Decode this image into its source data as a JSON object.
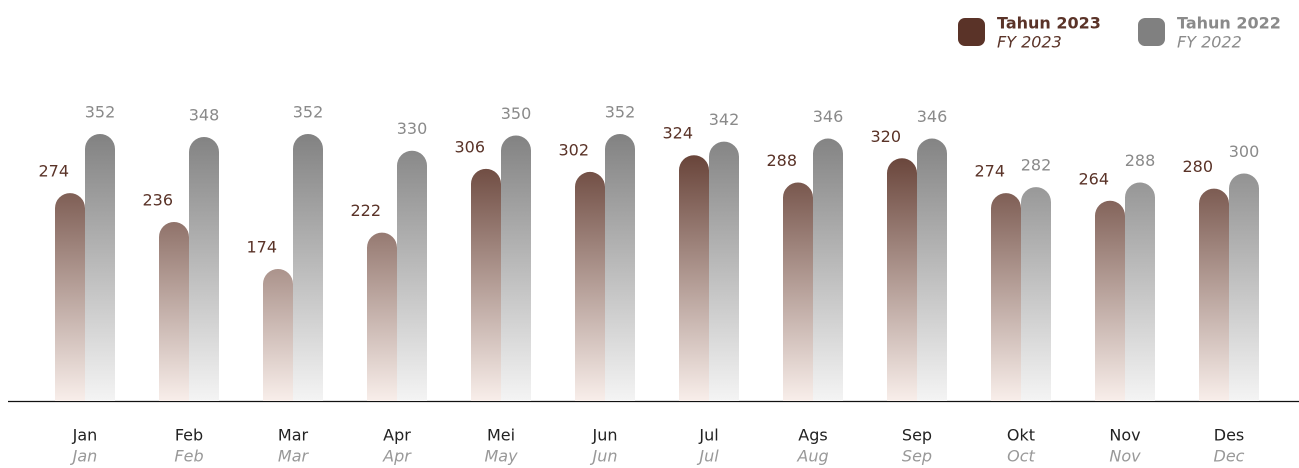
{
  "chart_data": {
    "type": "bar",
    "categories": [
      "Jan",
      "Feb",
      "Mar",
      "Apr",
      "Mei",
      "Jun",
      "Jul",
      "Ags",
      "Sep",
      "Okt",
      "Nov",
      "Des"
    ],
    "categories_en": [
      "Jan",
      "Feb",
      "Mar",
      "Apr",
      "May",
      "Jun",
      "Jul",
      "Aug",
      "Sep",
      "Oct",
      "Nov",
      "Dec"
    ],
    "series": [
      {
        "name": "Tahun 2023",
        "name_en": "FY 2023",
        "color": "#5a3328",
        "label_color": "#5a3328",
        "values": [
          274,
          236,
          174,
          222,
          306,
          302,
          324,
          288,
          320,
          274,
          264,
          280
        ]
      },
      {
        "name": "Tahun 2022",
        "name_en": "FY 2022",
        "color": "#808080",
        "label_color": "#8a8a8a",
        "values": [
          352,
          348,
          352,
          330,
          350,
          352,
          342,
          346,
          346,
          282,
          288,
          300
        ]
      }
    ],
    "legend": "top-right"
  }
}
